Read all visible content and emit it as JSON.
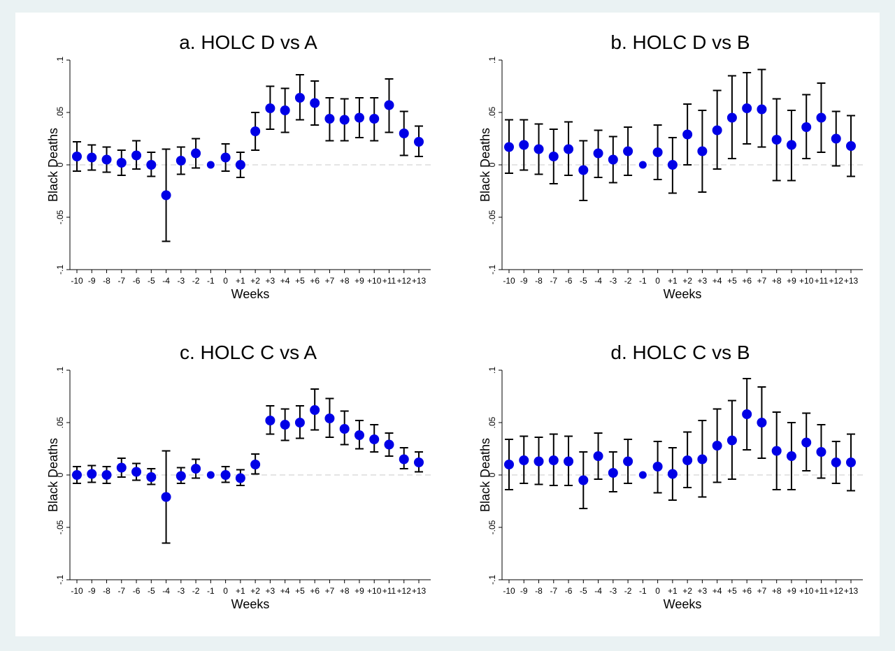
{
  "chart_data": [
    {
      "type": "scatter",
      "title": "a. HOLC D vs A",
      "xlabel": "Weeks",
      "ylabel": "Black Deaths",
      "ylim": [
        -0.1,
        0.1
      ],
      "y_ticks": [
        "-.1",
        "-.05",
        "0",
        ".05",
        ".1"
      ],
      "categories": [
        "-10",
        "-9",
        "-8",
        "-7",
        "-6",
        "-5",
        "-4",
        "-3",
        "-2",
        "-1",
        "0",
        "+1",
        "+2",
        "+3",
        "+4",
        "+5",
        "+6",
        "+7",
        "+8",
        "+9",
        "+10",
        "+11",
        "+12",
        "+13"
      ],
      "values": [
        0.008,
        0.007,
        0.005,
        0.002,
        0.009,
        0.0,
        -0.029,
        0.004,
        0.011,
        0.0,
        0.007,
        0.0,
        0.032,
        0.054,
        0.052,
        0.064,
        0.059,
        0.044,
        0.043,
        0.045,
        0.044,
        0.057,
        0.03,
        0.022
      ],
      "ci_low": [
        -0.006,
        -0.005,
        -0.007,
        -0.01,
        -0.004,
        -0.011,
        -0.073,
        -0.009,
        -0.003,
        null,
        -0.006,
        -0.012,
        0.014,
        0.034,
        0.031,
        0.043,
        0.038,
        0.023,
        0.023,
        0.026,
        0.023,
        0.031,
        0.009,
        0.008
      ],
      "ci_high": [
        0.022,
        0.019,
        0.017,
        0.014,
        0.023,
        0.012,
        0.015,
        0.017,
        0.025,
        null,
        0.02,
        0.012,
        0.05,
        0.075,
        0.073,
        0.086,
        0.08,
        0.064,
        0.063,
        0.064,
        0.064,
        0.082,
        0.051,
        0.037
      ],
      "reference_line": 0,
      "marker_color": "#0000e6"
    },
    {
      "type": "scatter",
      "title": "b. HOLC D vs B",
      "xlabel": "Weeks",
      "ylabel": "Black Deaths",
      "ylim": [
        -0.1,
        0.1
      ],
      "y_ticks": [
        "-.1",
        "-.05",
        "0",
        ".05",
        ".1"
      ],
      "categories": [
        "-10",
        "-9",
        "-8",
        "-7",
        "-6",
        "-5",
        "-4",
        "-3",
        "-2",
        "-1",
        "0",
        "+1",
        "+2",
        "+3",
        "+4",
        "+5",
        "+6",
        "+7",
        "+8",
        "+9",
        "+10",
        "+11",
        "+12",
        "+13"
      ],
      "values": [
        0.017,
        0.019,
        0.015,
        0.008,
        0.015,
        -0.005,
        0.011,
        0.005,
        0.013,
        0.0,
        0.012,
        0.0,
        0.029,
        0.013,
        0.033,
        0.045,
        0.054,
        0.053,
        0.024,
        0.019,
        0.036,
        0.045,
        0.025,
        0.018
      ],
      "ci_low": [
        -0.008,
        -0.005,
        -0.009,
        -0.018,
        -0.01,
        -0.034,
        -0.012,
        -0.017,
        -0.01,
        null,
        -0.014,
        -0.027,
        0.0,
        -0.026,
        -0.004,
        0.006,
        0.02,
        0.017,
        -0.015,
        -0.015,
        0.006,
        0.012,
        -0.001,
        -0.011
      ],
      "ci_high": [
        0.043,
        0.043,
        0.039,
        0.034,
        0.041,
        0.023,
        0.033,
        0.027,
        0.036,
        null,
        0.038,
        0.026,
        0.058,
        0.052,
        0.071,
        0.085,
        0.088,
        0.091,
        0.063,
        0.052,
        0.067,
        0.078,
        0.051,
        0.047
      ],
      "reference_line": 0,
      "marker_color": "#0000e6"
    },
    {
      "type": "scatter",
      "title": "c. HOLC C vs A",
      "xlabel": "Weeks",
      "ylabel": "Black Deaths",
      "ylim": [
        -0.1,
        0.1
      ],
      "y_ticks": [
        "-.1",
        "-.05",
        "0",
        ".05",
        ".1"
      ],
      "categories": [
        "-10",
        "-9",
        "-8",
        "-7",
        "-6",
        "-5",
        "-4",
        "-3",
        "-2",
        "-1",
        "0",
        "+1",
        "+2",
        "+3",
        "+4",
        "+5",
        "+6",
        "+7",
        "+8",
        "+9",
        "+10",
        "+11",
        "+12",
        "+13"
      ],
      "values": [
        0.0,
        0.001,
        0.0,
        0.007,
        0.003,
        -0.002,
        -0.021,
        -0.001,
        0.006,
        0.0,
        0.0,
        -0.003,
        0.01,
        0.052,
        0.048,
        0.05,
        0.062,
        0.054,
        0.044,
        0.038,
        0.034,
        0.029,
        0.015,
        0.012
      ],
      "ci_low": [
        -0.008,
        -0.007,
        -0.008,
        -0.002,
        -0.005,
        -0.009,
        -0.065,
        -0.008,
        -0.003,
        null,
        -0.007,
        -0.01,
        0.001,
        0.039,
        0.033,
        0.035,
        0.043,
        0.036,
        0.029,
        0.025,
        0.022,
        0.018,
        0.006,
        0.003
      ],
      "ci_high": [
        0.008,
        0.009,
        0.008,
        0.016,
        0.011,
        0.006,
        0.023,
        0.007,
        0.015,
        null,
        0.008,
        0.005,
        0.02,
        0.066,
        0.063,
        0.066,
        0.082,
        0.073,
        0.061,
        0.052,
        0.048,
        0.04,
        0.026,
        0.022
      ],
      "reference_line": 0,
      "marker_color": "#0000e6"
    },
    {
      "type": "scatter",
      "title": "d. HOLC C vs B",
      "xlabel": "Weeks",
      "ylabel": "Black Deaths",
      "ylim": [
        -0.1,
        0.1
      ],
      "y_ticks": [
        "-.1",
        "-.05",
        "0",
        ".05",
        ".1"
      ],
      "categories": [
        "-10",
        "-9",
        "-8",
        "-7",
        "-6",
        "-5",
        "-4",
        "-3",
        "-2",
        "-1",
        "0",
        "+1",
        "+2",
        "+3",
        "+4",
        "+5",
        "+6",
        "+7",
        "+8",
        "+9",
        "+10",
        "+11",
        "+12",
        "+13"
      ],
      "values": [
        0.01,
        0.014,
        0.013,
        0.014,
        0.013,
        -0.005,
        0.018,
        0.002,
        0.013,
        0.0,
        0.008,
        0.001,
        0.014,
        0.015,
        0.028,
        0.033,
        0.058,
        0.05,
        0.023,
        0.018,
        0.031,
        0.022,
        0.012,
        0.012
      ],
      "ci_low": [
        -0.014,
        -0.008,
        -0.009,
        -0.01,
        -0.01,
        -0.032,
        -0.004,
        -0.016,
        -0.008,
        null,
        -0.017,
        -0.024,
        -0.012,
        -0.021,
        -0.007,
        -0.004,
        0.024,
        0.016,
        -0.014,
        -0.014,
        0.004,
        -0.003,
        -0.008,
        -0.015
      ],
      "ci_high": [
        0.034,
        0.037,
        0.036,
        0.039,
        0.037,
        0.022,
        0.04,
        0.022,
        0.034,
        null,
        0.032,
        0.026,
        0.041,
        0.052,
        0.063,
        0.071,
        0.092,
        0.084,
        0.06,
        0.05,
        0.059,
        0.048,
        0.032,
        0.039
      ],
      "reference_line": 0,
      "marker_color": "#0000e6"
    }
  ]
}
